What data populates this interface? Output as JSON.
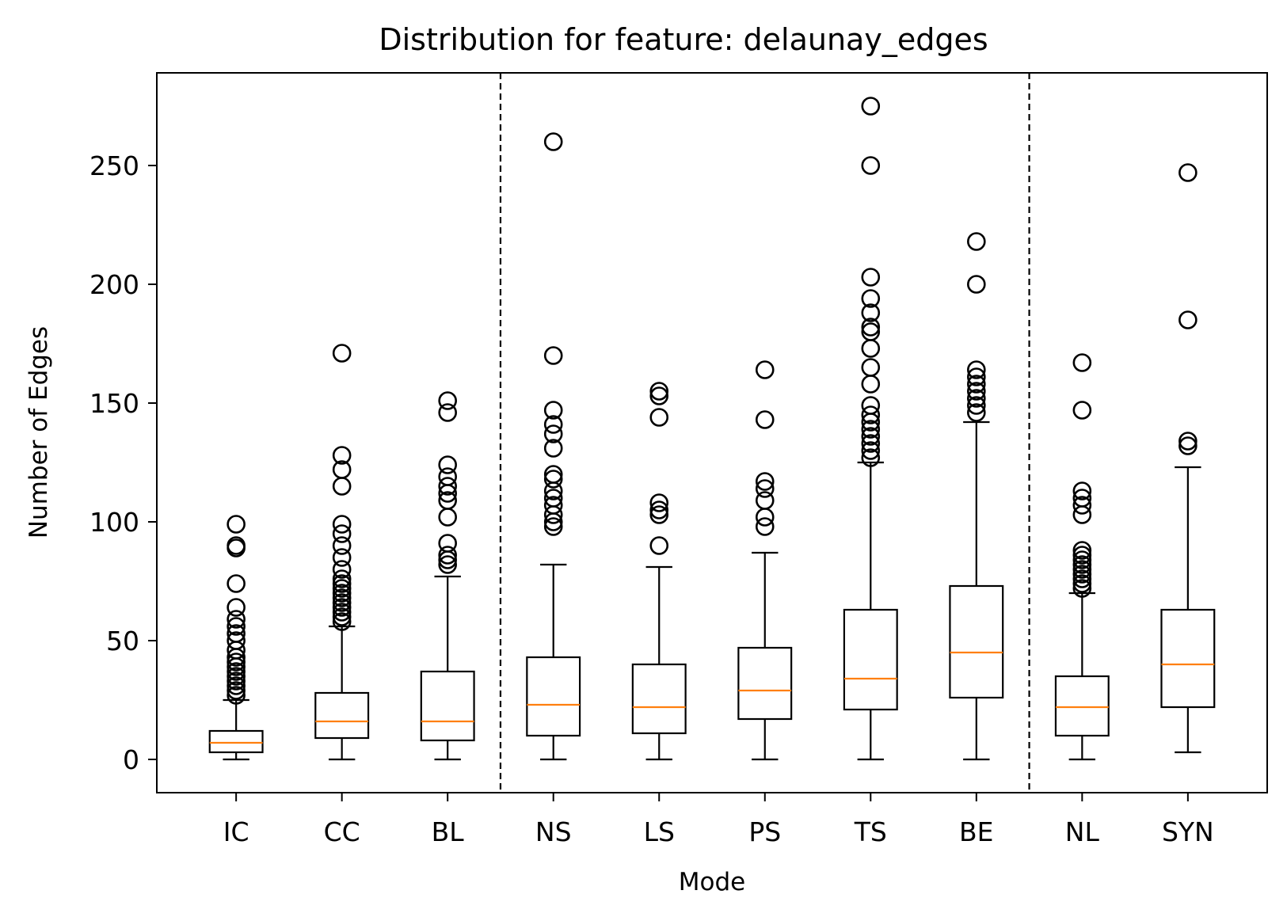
{
  "chart_data": {
    "type": "boxplot",
    "title": "Distribution for feature: delaunay_edges",
    "xlabel": "Mode",
    "ylabel": "Number of Edges",
    "categories": [
      "IC",
      "CC",
      "BL",
      "NS",
      "LS",
      "PS",
      "TS",
      "BE",
      "NL",
      "SYN"
    ],
    "ylim": [
      -14,
      289
    ],
    "yticks": [
      0,
      50,
      100,
      150,
      200,
      250
    ],
    "group_separators_after_index": [
      2,
      7
    ],
    "colors": {
      "box": "#000000",
      "median": "#ff7f0e",
      "separator": "#000000"
    },
    "boxes": [
      {
        "name": "IC",
        "whisker_low": 0,
        "q1": 3,
        "median": 7,
        "q3": 12,
        "whisker_high": 25,
        "outliers": [
          27,
          29,
          31,
          33,
          35,
          37,
          39,
          41,
          43,
          46,
          50,
          53,
          56,
          59,
          64,
          74,
          89,
          90,
          99
        ]
      },
      {
        "name": "CC",
        "whisker_low": 0,
        "q1": 9,
        "median": 16,
        "q3": 28,
        "whisker_high": 56,
        "outliers": [
          58,
          60,
          62,
          64,
          66,
          68,
          70,
          72,
          74,
          76,
          80,
          85,
          90,
          95,
          99,
          115,
          122,
          128,
          171
        ]
      },
      {
        "name": "BL",
        "whisker_low": 0,
        "q1": 8,
        "median": 16,
        "q3": 37,
        "whisker_high": 77,
        "outliers": [
          82,
          84,
          86,
          91,
          102,
          109,
          112,
          115,
          119,
          124,
          146,
          151
        ]
      },
      {
        "name": "NS",
        "whisker_low": 0,
        "q1": 10,
        "median": 23,
        "q3": 43,
        "whisker_high": 82,
        "outliers": [
          98,
          100,
          103,
          107,
          110,
          113,
          118,
          120,
          131,
          137,
          141,
          147,
          170,
          260
        ]
      },
      {
        "name": "LS",
        "whisker_low": 0,
        "q1": 11,
        "median": 22,
        "q3": 40,
        "whisker_high": 81,
        "outliers": [
          90,
          103,
          105,
          108,
          144,
          153,
          155
        ]
      },
      {
        "name": "PS",
        "whisker_low": 0,
        "q1": 17,
        "median": 29,
        "q3": 47,
        "whisker_high": 87,
        "outliers": [
          98,
          102,
          109,
          114,
          117,
          143,
          164
        ]
      },
      {
        "name": "TS",
        "whisker_low": 0,
        "q1": 21,
        "median": 34,
        "q3": 63,
        "whisker_high": 125,
        "outliers": [
          127,
          130,
          133,
          136,
          139,
          142,
          145,
          149,
          158,
          165,
          173,
          180,
          182,
          188,
          194,
          203,
          250,
          275
        ]
      },
      {
        "name": "BE",
        "whisker_low": 0,
        "q1": 26,
        "median": 45,
        "q3": 73,
        "whisker_high": 142,
        "outliers": [
          146,
          149,
          152,
          155,
          158,
          161,
          164,
          200,
          218
        ]
      },
      {
        "name": "NL",
        "whisker_low": 0,
        "q1": 10,
        "median": 22,
        "q3": 35,
        "whisker_high": 70,
        "outliers": [
          72,
          74,
          76,
          78,
          80,
          82,
          84,
          86,
          88,
          103,
          107,
          110,
          113,
          147,
          167
        ]
      },
      {
        "name": "SYN",
        "whisker_low": 3,
        "q1": 22,
        "median": 40,
        "q3": 63,
        "whisker_high": 123,
        "outliers": [
          132,
          134,
          185,
          247
        ]
      }
    ]
  }
}
